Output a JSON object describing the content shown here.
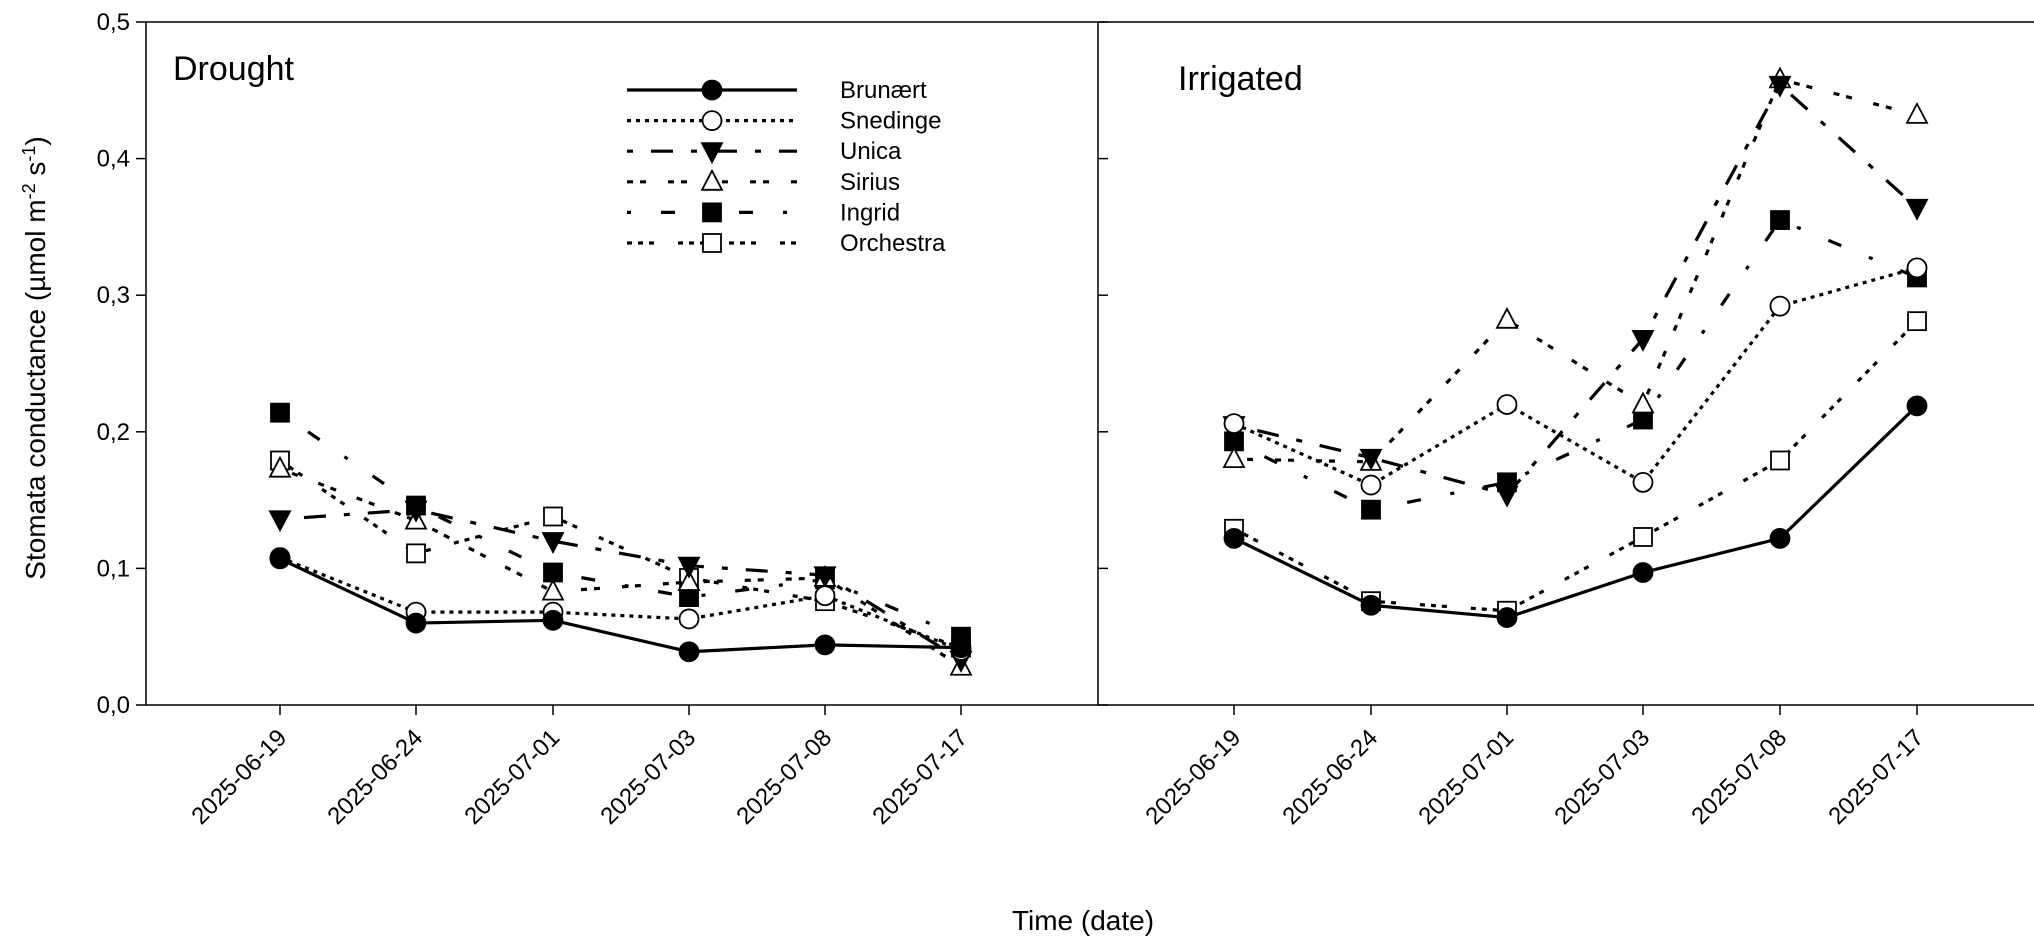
{
  "chart_data": {
    "type": "line",
    "ylabel": {
      "main": "Stomata conductance (µmol m",
      "sup1": "-2",
      "mid": " s",
      "sup2": "-1",
      "end": ")"
    },
    "xlabel": "Time (date)",
    "ylim": [
      0.0,
      0.5
    ],
    "yticks": [
      "0,0",
      "0,1",
      "0,2",
      "0,3",
      "0,4",
      "0,5"
    ],
    "categories": [
      "2025-06-19",
      "2025-06-24",
      "2025-07-01",
      "2025-07-03",
      "2025-07-08",
      "2025-07-17"
    ],
    "grid": false,
    "legend_position": "top-right of Drought panel",
    "panels": [
      {
        "title": "Drought",
        "series": [
          {
            "name": "Brunært",
            "values": [
              0.107,
              0.06,
              0.062,
              0.039,
              0.044,
              0.042
            ]
          },
          {
            "name": "Snedinge",
            "values": [
              0.108,
              0.068,
              0.068,
              0.063,
              0.08,
              0.04
            ]
          },
          {
            "name": "Unica",
            "values": [
              0.136,
              0.143,
              0.12,
              0.102,
              0.095,
              0.033
            ]
          },
          {
            "name": "Sirius",
            "values": [
              0.173,
              0.135,
              0.083,
              0.09,
              0.093,
              0.028
            ]
          },
          {
            "name": "Ingrid",
            "values": [
              0.214,
              0.146,
              0.097,
              0.079,
              0.092,
              0.05
            ]
          },
          {
            "name": "Orchestra",
            "values": [
              0.179,
              0.111,
              0.138,
              0.093,
              0.076,
              0.042
            ]
          }
        ]
      },
      {
        "title": "Irrigated",
        "series": [
          {
            "name": "Brunært",
            "values": [
              0.122,
              0.073,
              0.064,
              0.097,
              0.122,
              0.219
            ]
          },
          {
            "name": "Snedinge",
            "values": [
              0.206,
              0.161,
              0.22,
              0.163,
              0.292,
              0.32
            ]
          },
          {
            "name": "Unica",
            "values": [
              0.205,
              0.181,
              0.154,
              0.268,
              0.454,
              0.364
            ]
          },
          {
            "name": "Sirius",
            "values": [
              0.18,
              0.178,
              0.282,
              0.22,
              0.458,
              0.432
            ]
          },
          {
            "name": "Ingrid",
            "values": [
              0.193,
              0.143,
              0.163,
              0.209,
              0.355,
              0.313
            ]
          },
          {
            "name": "Orchestra",
            "values": [
              0.129,
              0.076,
              0.069,
              0.123,
              0.179,
              0.281
            ]
          }
        ]
      }
    ]
  }
}
